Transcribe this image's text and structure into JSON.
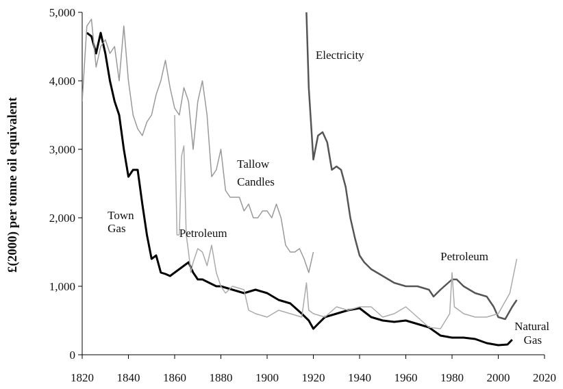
{
  "chart_data": {
    "type": "line",
    "ylabel": "£(2000) per tonne oil equivalent",
    "xlim": [
      1820,
      2020
    ],
    "ylim": [
      0,
      5000
    ],
    "x_ticks": [
      "1820",
      "1840",
      "1860",
      "1880",
      "1900",
      "1920",
      "1940",
      "1960",
      "1980",
      "2000",
      "2020"
    ],
    "y_ticks": [
      "0",
      "1,000",
      "2,000",
      "3,000",
      "4,000",
      "5,000"
    ],
    "grid": false,
    "legend": "none",
    "annotations": [
      {
        "text": "Electricity",
        "x": 1921,
        "y": 4320
      },
      {
        "text": "Tallow",
        "x": 1887,
        "y": 2730
      },
      {
        "text": "Candles",
        "x": 1887,
        "y": 2470
      },
      {
        "text": "Town",
        "x": 1831,
        "y": 1980
      },
      {
        "text": "Gas",
        "x": 1831,
        "y": 1790
      },
      {
        "text": "Petroleum",
        "x": 1862,
        "y": 1720
      },
      {
        "text": "Petroleum",
        "x": 1975,
        "y": 1380
      },
      {
        "text": "Natural",
        "x": 2007,
        "y": 360
      },
      {
        "text": "Gas",
        "x": 2011,
        "y": 160
      }
    ],
    "series": [
      {
        "color": "#000000",
        "width": 3,
        "x": [
          1822,
          1824,
          1826,
          1828,
          1830,
          1832,
          1834,
          1836,
          1838,
          1840,
          1842,
          1844,
          1846,
          1848,
          1850,
          1852,
          1854,
          1856,
          1858,
          1860,
          1862,
          1864,
          1866,
          1868,
          1870,
          1872,
          1875,
          1878,
          1880,
          1885,
          1890,
          1895,
          1900,
          1905,
          1910,
          1915,
          1918,
          1920,
          1922,
          1925,
          1930,
          1935,
          1940,
          1945,
          1950,
          1955,
          1960,
          1965,
          1970,
          1975,
          1980,
          1985,
          1990,
          1995,
          2000,
          2004,
          2006
        ],
        "y": [
          4700,
          4650,
          4400,
          4700,
          4400,
          4000,
          3700,
          3500,
          3000,
          2600,
          2700,
          2700,
          2200,
          1750,
          1400,
          1450,
          1200,
          1180,
          1150,
          1200,
          1250,
          1300,
          1350,
          1200,
          1100,
          1100,
          1050,
          1000,
          1000,
          950,
          900,
          950,
          900,
          800,
          750,
          600,
          500,
          380,
          450,
          550,
          600,
          650,
          680,
          550,
          500,
          480,
          500,
          450,
          400,
          280,
          250,
          250,
          230,
          170,
          140,
          150,
          220
        ]
      },
      {
        "color": "#555555",
        "width": 2.5,
        "x": [
          1917,
          1918,
          1920,
          1922,
          1924,
          1926,
          1928,
          1930,
          1932,
          1934,
          1936,
          1938,
          1940,
          1942,
          1945,
          1950,
          1955,
          1960,
          1965,
          1970,
          1972,
          1975,
          1980,
          1982,
          1985,
          1990,
          1995,
          1998,
          2000,
          2003,
          2006,
          2008
        ],
        "y": [
          5000,
          3900,
          2850,
          3200,
          3250,
          3100,
          2700,
          2750,
          2700,
          2450,
          2000,
          1700,
          1450,
          1350,
          1250,
          1150,
          1050,
          1000,
          1000,
          950,
          850,
          950,
          1100,
          1100,
          1000,
          900,
          850,
          700,
          550,
          520,
          700,
          800
        ]
      },
      {
        "color": "#999999",
        "width": 1.5,
        "x": [
          1820,
          1822,
          1824,
          1826,
          1828,
          1830,
          1832,
          1834,
          1836,
          1838,
          1840,
          1842,
          1844,
          1846,
          1848,
          1850,
          1852,
          1854,
          1856,
          1858,
          1860,
          1862,
          1864,
          1866,
          1868,
          1870,
          1872,
          1874,
          1876,
          1878,
          1880,
          1882,
          1884,
          1886,
          1888,
          1890,
          1892,
          1894,
          1896,
          1898,
          1900,
          1902,
          1904,
          1906,
          1908,
          1910,
          1912,
          1914,
          1916,
          1918,
          1920
        ],
        "y": [
          3700,
          4800,
          4900,
          4200,
          4500,
          4600,
          4400,
          4500,
          4000,
          4800,
          4000,
          3500,
          3300,
          3200,
          3400,
          3500,
          3800,
          4000,
          4300,
          3900,
          3600,
          3500,
          3900,
          3700,
          3000,
          3700,
          4000,
          3500,
          2600,
          2700,
          3000,
          2400,
          2300,
          2300,
          2300,
          2100,
          2200,
          2000,
          2000,
          2100,
          2100,
          2000,
          2200,
          2000,
          1600,
          1500,
          1500,
          1550,
          1400,
          1200,
          1500
        ]
      },
      {
        "color": "#aaaaaa",
        "width": 1.5,
        "x": [
          1860,
          1861,
          1862,
          1863,
          1864,
          1865,
          1866,
          1867,
          1868,
          1870,
          1872,
          1874,
          1876,
          1878,
          1880,
          1882,
          1885,
          1890,
          1892,
          1895,
          1900,
          1905,
          1910,
          1915,
          1917,
          1918,
          1920,
          1925,
          1930,
          1935,
          1940,
          1945,
          1950,
          1955,
          1960,
          1965,
          1970,
          1975,
          1979,
          1980,
          1981,
          1985,
          1990,
          1995,
          2000,
          2005,
          2008
        ],
        "y": [
          3500,
          1750,
          1750,
          2900,
          3050,
          1750,
          1500,
          1200,
          1350,
          1550,
          1500,
          1300,
          1600,
          1200,
          1000,
          900,
          1000,
          950,
          650,
          600,
          550,
          650,
          600,
          550,
          1050,
          650,
          600,
          550,
          700,
          650,
          700,
          700,
          550,
          600,
          700,
          550,
          400,
          380,
          600,
          1200,
          700,
          600,
          550,
          550,
          600,
          900,
          1400
        ]
      }
    ]
  }
}
